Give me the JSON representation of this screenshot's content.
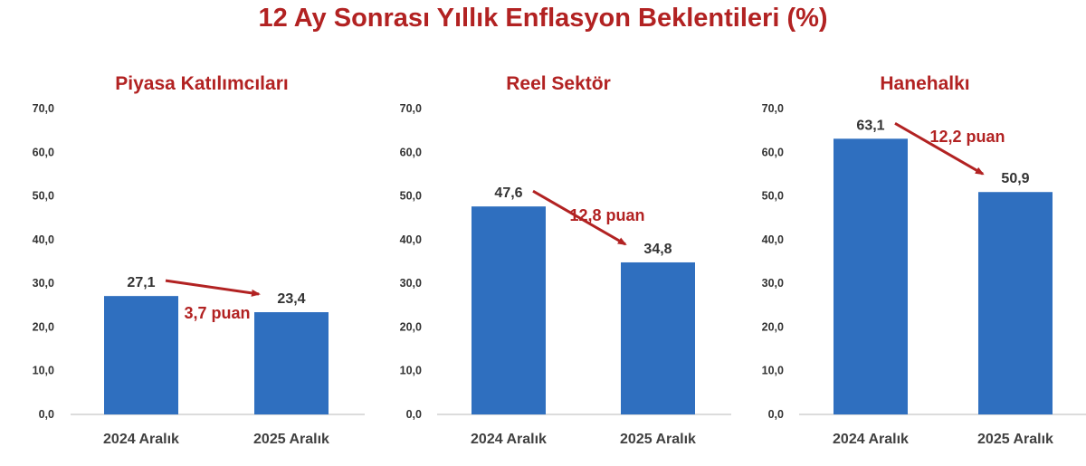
{
  "title": "12 Ay Sonrası Yıllık Enflasyon Beklentileri (%)",
  "colors": {
    "bar": "#2f6fbf",
    "accent": "#b22222",
    "axis": "#d0d0d0"
  },
  "chart_data": [
    {
      "type": "bar",
      "title": "Piyasa Katılımcıları",
      "categories": [
        "2024 Aralık",
        "2025 Aralık"
      ],
      "values": [
        27.1,
        23.4
      ],
      "value_labels": [
        "27,1",
        "23,4"
      ],
      "ylim": [
        0,
        70
      ],
      "yticks": [
        "0,0",
        "10,0",
        "20,0",
        "30,0",
        "40,0",
        "50,0",
        "60,0",
        "70,0"
      ],
      "annotation": "3,7 puan",
      "grid": false
    },
    {
      "type": "bar",
      "title": "Reel Sektör",
      "categories": [
        "2024 Aralık",
        "2025 Aralık"
      ],
      "values": [
        47.6,
        34.8
      ],
      "value_labels": [
        "47,6",
        "34,8"
      ],
      "ylim": [
        0,
        70
      ],
      "yticks": [
        "0,0",
        "10,0",
        "20,0",
        "30,0",
        "40,0",
        "50,0",
        "60,0",
        "70,0"
      ],
      "annotation": "12,8 puan",
      "grid": false
    },
    {
      "type": "bar",
      "title": "Hanehalkı",
      "categories": [
        "2024 Aralık",
        "2025 Aralık"
      ],
      "values": [
        63.1,
        50.9
      ],
      "value_labels": [
        "63,1",
        "50,9"
      ],
      "ylim": [
        0,
        70
      ],
      "yticks": [
        "0,0",
        "10,0",
        "20,0",
        "30,0",
        "40,0",
        "50,0",
        "60,0",
        "70,0"
      ],
      "annotation": "12,2 puan",
      "grid": false
    }
  ]
}
